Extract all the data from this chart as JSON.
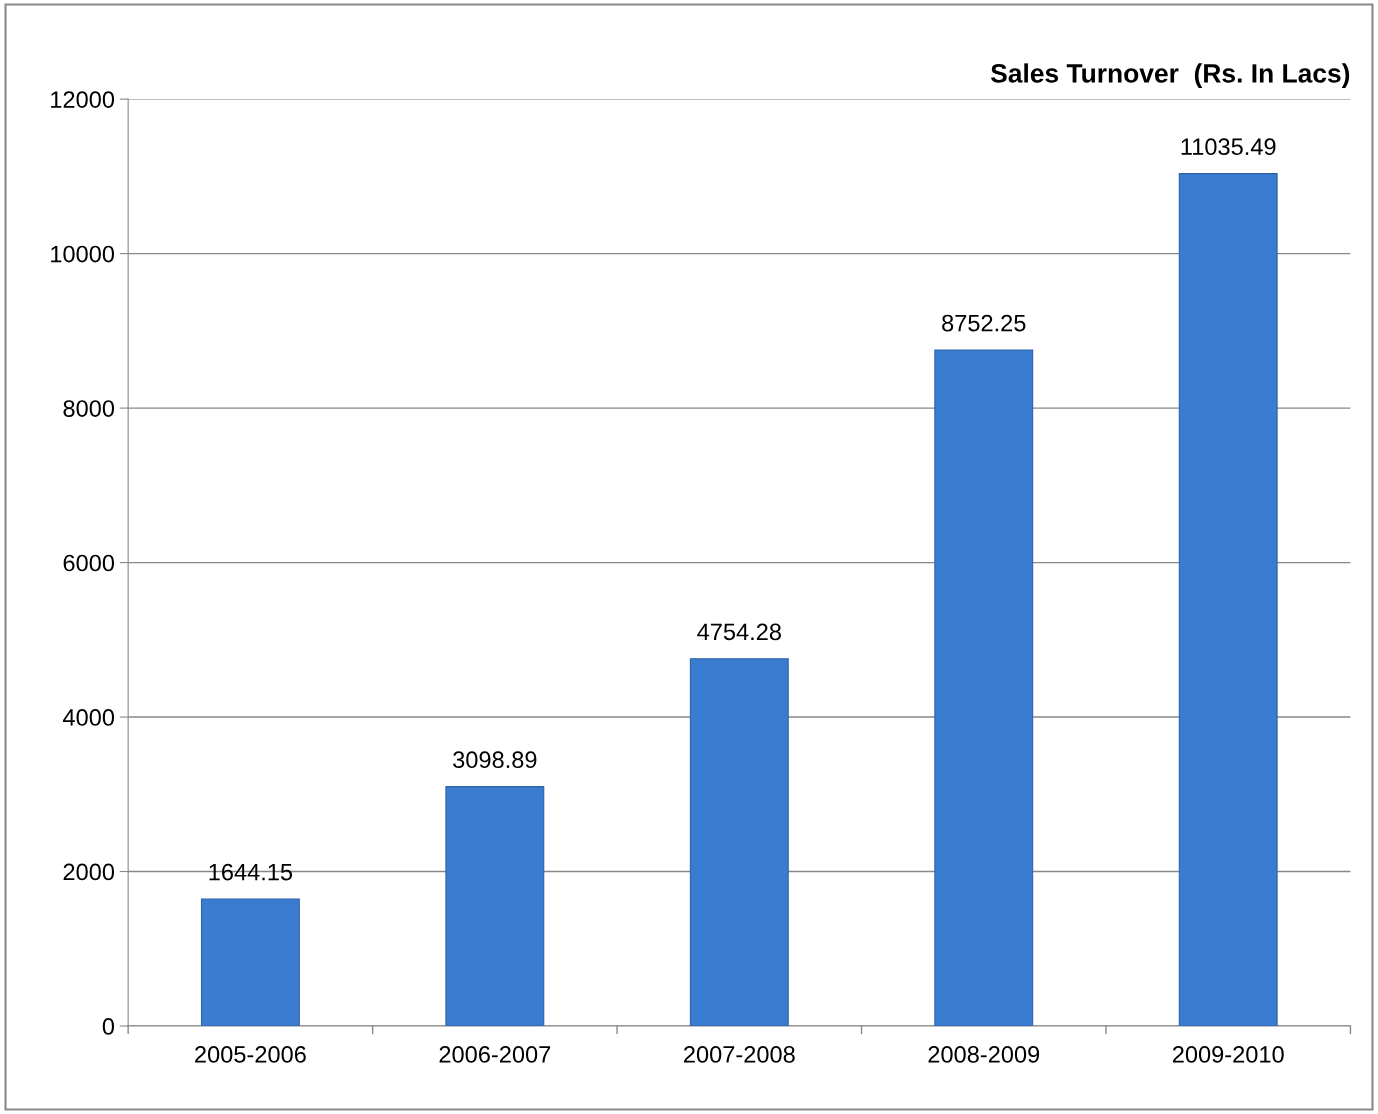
{
  "chart_data": {
    "type": "bar",
    "title": "Sales Turnover  (Rs. In Lacs)",
    "categories": [
      "2005-2006",
      "2006-2007",
      "2007-2008",
      "2008-2009",
      "2009-2010"
    ],
    "values": [
      1644.15,
      3098.89,
      4754.28,
      8752.25,
      11035.49
    ],
    "color": "#3a7ccf",
    "ylim": [
      0,
      12000
    ],
    "yticks": [
      0,
      2000,
      4000,
      6000,
      8000,
      10000,
      12000
    ],
    "grid": "y",
    "data_labels": true,
    "legend": false
  }
}
